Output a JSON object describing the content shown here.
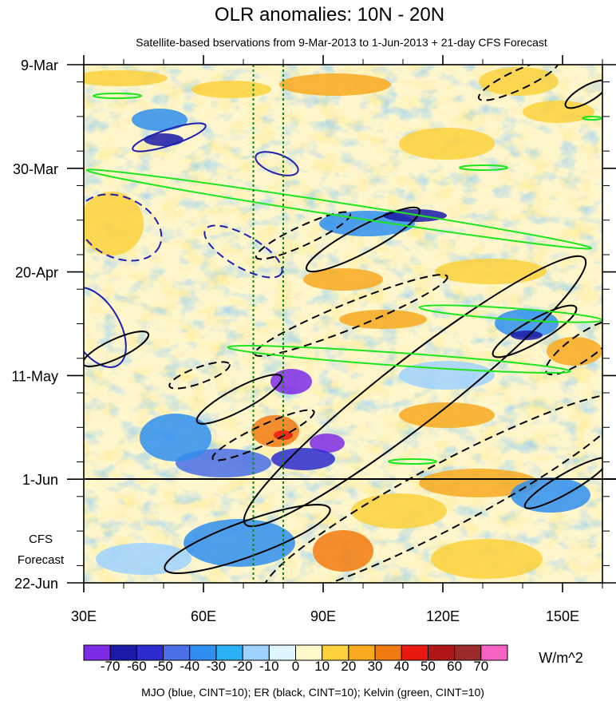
{
  "chart_data": {
    "type": "heatmap",
    "title": "OLR anomalies: 10N - 20N",
    "subtitle": "Satellite-based bservations from 9-Mar-2013 to 1-Jun-2013 + 21-day CFS Forecast",
    "x_ticks": [
      {
        "label": "30E",
        "value": 30
      },
      {
        "label": "60E",
        "value": 60
      },
      {
        "label": "90E",
        "value": 90
      },
      {
        "label": "120E",
        "value": 120
      },
      {
        "label": "150E",
        "value": 150
      }
    ],
    "xlim": [
      30,
      160
    ],
    "y_ticks": [
      {
        "label": "9-Mar",
        "day": 0
      },
      {
        "label": "30-Mar",
        "day": 21
      },
      {
        "label": "20-Apr",
        "day": 42
      },
      {
        "label": "11-May",
        "day": 63
      },
      {
        "label": "1-Jun",
        "day": 84
      },
      {
        "label": "22-Jun",
        "day": 105
      }
    ],
    "ylim_dates": [
      "9-Mar-2013",
      "22-Jun-2013"
    ],
    "forecast_label_line1": "CFS",
    "forecast_label_line2": "Forecast",
    "forecast_start": "1-Jun-2013",
    "reference_lon_lines": [
      72.5,
      80
    ],
    "colorbar": {
      "labels": [
        "-70",
        "-60",
        "-50",
        "-40",
        "-30",
        "-20",
        "-10",
        "0",
        "10",
        "20",
        "30",
        "40",
        "50",
        "60",
        "70"
      ],
      "colors": [
        "#7e2be6",
        "#1a1aa6",
        "#2c2ccf",
        "#4a6fe6",
        "#2f8ff0",
        "#2bb0f5",
        "#9fd2ff",
        "#dff5ff",
        "#fff8c8",
        "#fcd13c",
        "#f8a91e",
        "#f27a10",
        "#ea1a10",
        "#b01818",
        "#9d2a2a",
        "#f562c4"
      ],
      "units": "W/m^2"
    },
    "contour_legend": "MJO (blue, CINT=10); ER (black, CINT=10); Kelvin (green, CINT=10)",
    "colors": {
      "mjo": "#1f1fb0",
      "er": "#000000",
      "kelvin": "#1ee61e",
      "ref_line": "#118811"
    }
  }
}
